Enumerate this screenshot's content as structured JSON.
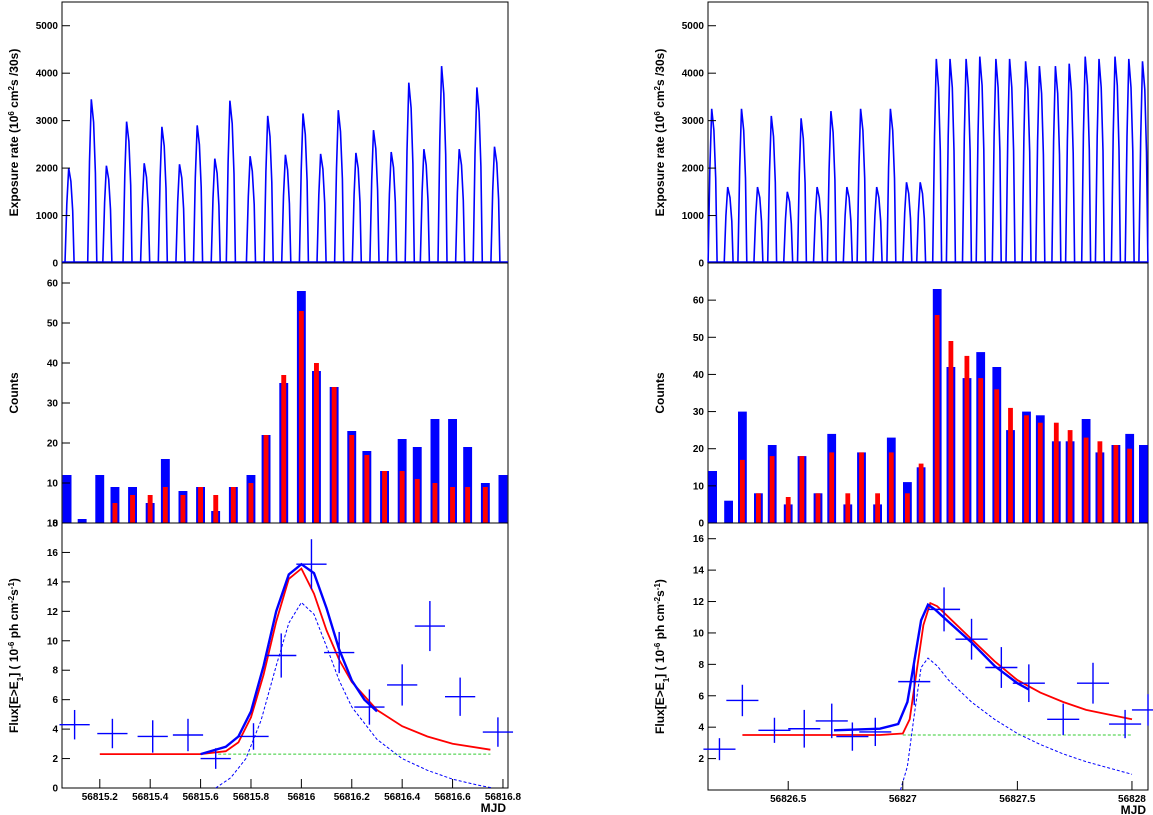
{
  "chart_data": [
    {
      "type": "line",
      "panel": "left-top",
      "ylabel_parts": [
        "Exposure rate (10",
        "6",
        " cm",
        "2",
        "s /30s)"
      ],
      "ylim": [
        0,
        5500
      ],
      "yticks": [
        0,
        1000,
        2000,
        3000,
        4000,
        5000
      ],
      "xlim": [
        56815.05,
        56816.82
      ],
      "color": "#0000ff",
      "x": [
        56815.08,
        56815.17,
        56815.23,
        56815.31,
        56815.38,
        56815.45,
        56815.52,
        56815.59,
        56815.66,
        56815.72,
        56815.8,
        56815.87,
        56815.94,
        56816.01,
        56816.08,
        56816.15,
        56816.22,
        56816.29,
        56816.36,
        56816.43,
        56816.49,
        56816.56,
        56816.63,
        56816.7,
        56816.77
      ],
      "values": [
        2000,
        3450,
        2050,
        2980,
        2100,
        2870,
        2080,
        2900,
        2200,
        3420,
        2250,
        3100,
        2280,
        3150,
        2300,
        3220,
        2320,
        2800,
        2340,
        3800,
        2400,
        4150,
        2400,
        3700,
        2450
      ]
    },
    {
      "type": "bar",
      "panel": "left-middle",
      "ylabel": "Counts",
      "ylim": [
        0,
        65
      ],
      "yticks": [
        0,
        10,
        20,
        30,
        40,
        50,
        60
      ],
      "xlim": [
        56815.05,
        56816.82
      ],
      "series": [
        {
          "color": "#0000ff",
          "x": [
            56815.07,
            56815.13,
            56815.2,
            56815.26,
            56815.33,
            56815.4,
            56815.46,
            56815.53,
            56815.6,
            56815.66,
            56815.73,
            56815.8,
            56815.86,
            56815.93,
            56816.0,
            56816.06,
            56816.13,
            56816.2,
            56816.26,
            56816.33,
            56816.4,
            56816.46,
            56816.53,
            56816.6,
            56816.66,
            56816.73,
            56816.8
          ],
          "values": [
            12,
            1,
            12,
            9,
            9,
            5,
            16,
            8,
            9,
            3,
            9,
            12,
            22,
            35,
            58,
            38,
            34,
            23,
            18,
            13,
            21,
            19,
            26,
            26,
            19,
            10,
            12
          ]
        },
        {
          "color": "#ff0000",
          "x": [
            56815.07,
            56815.13,
            56815.2,
            56815.26,
            56815.33,
            56815.4,
            56815.46,
            56815.53,
            56815.6,
            56815.66,
            56815.73,
            56815.8,
            56815.86,
            56815.93,
            56816.0,
            56816.06,
            56816.13,
            56816.2,
            56816.26,
            56816.33,
            56816.4,
            56816.46,
            56816.53,
            56816.6,
            56816.66,
            56816.73,
            56816.8
          ],
          "values": [
            0,
            0,
            0,
            5,
            7,
            7,
            9,
            7,
            9,
            7,
            9,
            10,
            22,
            37,
            53,
            40,
            34,
            22,
            17,
            13,
            13,
            11,
            10,
            9,
            9,
            9,
            0
          ]
        }
      ]
    },
    {
      "type": "scatter",
      "panel": "left-bottom",
      "ylabel_parts": [
        "Flux[E>E",
        "1",
        "] ( 10",
        "-6",
        " ph cm",
        "-2",
        "s",
        "-1",
        ")"
      ],
      "xlabel": "MJD",
      "ylim": [
        0,
        18
      ],
      "yticks": [
        0,
        2,
        4,
        6,
        8,
        10,
        12,
        14,
        16,
        18
      ],
      "xlim": [
        56815.05,
        56816.82
      ],
      "xticks": [
        56815.2,
        56815.4,
        56815.6,
        56815.8,
        56816,
        56816.2,
        56816.4,
        56816.6,
        56816.8
      ],
      "xticklabels": [
        "56815.2",
        "56815.4",
        "56815.6",
        "56815.8",
        "56816",
        "56816.2",
        "56816.4",
        "56816.6",
        "56816.8"
      ],
      "points": [
        {
          "x": 56815.1,
          "xerr": 0.06,
          "y": 4.3,
          "yerr": 1.0
        },
        {
          "x": 56815.25,
          "xerr": 0.06,
          "y": 3.7,
          "yerr": 1.0
        },
        {
          "x": 56815.41,
          "xerr": 0.06,
          "y": 3.5,
          "yerr": 1.1
        },
        {
          "x": 56815.55,
          "xerr": 0.06,
          "y": 3.6,
          "yerr": 1.1
        },
        {
          "x": 56815.66,
          "xerr": 0.06,
          "y": 2.0,
          "yerr": 0.7
        },
        {
          "x": 56815.81,
          "xerr": 0.06,
          "y": 3.5,
          "yerr": 0.9
        },
        {
          "x": 56815.92,
          "xerr": 0.06,
          "y": 9.0,
          "yerr": 1.5
        },
        {
          "x": 56816.04,
          "xerr": 0.06,
          "y": 15.2,
          "yerr": 1.7
        },
        {
          "x": 56816.15,
          "xerr": 0.06,
          "y": 9.2,
          "yerr": 1.4
        },
        {
          "x": 56816.27,
          "xerr": 0.06,
          "y": 5.5,
          "yerr": 1.2
        },
        {
          "x": 56816.4,
          "xerr": 0.06,
          "y": 7.0,
          "yerr": 1.4
        },
        {
          "x": 56816.51,
          "xerr": 0.06,
          "y": 11.0,
          "yerr": 1.7
        },
        {
          "x": 56816.63,
          "xerr": 0.06,
          "y": 6.2,
          "yerr": 1.3
        },
        {
          "x": 56816.78,
          "xerr": 0.06,
          "y": 3.8,
          "yerr": 1.0
        }
      ],
      "curves": [
        {
          "color": "#ff0000",
          "style": "solid",
          "x": [
            56815.2,
            56815.4,
            56815.6,
            56815.7,
            56815.75,
            56815.8,
            56815.85,
            56815.9,
            56815.95,
            56816.0,
            56816.05,
            56816.1,
            56816.15,
            56816.2,
            56816.3,
            56816.4,
            56816.5,
            56816.6,
            56816.75
          ],
          "values": [
            2.3,
            2.3,
            2.3,
            2.5,
            3.1,
            4.8,
            7.7,
            11.3,
            14.2,
            14.9,
            13.2,
            10.7,
            8.7,
            7.2,
            5.3,
            4.2,
            3.5,
            3.0,
            2.6
          ]
        },
        {
          "color": "#0000ff",
          "style": "solid",
          "x": [
            56815.6,
            56815.7,
            56815.75,
            56815.8,
            56815.85,
            56815.9,
            56815.95,
            56816.0,
            56816.05,
            56816.1,
            56816.15,
            56816.2,
            56816.25,
            56816.3
          ],
          "values": [
            2.3,
            2.8,
            3.5,
            5.2,
            8.3,
            12.0,
            14.5,
            15.2,
            14.6,
            12.2,
            9.4,
            7.3,
            6.0,
            5.2
          ]
        },
        {
          "color": "#0000ff",
          "style": "dashed",
          "x": [
            56815.66,
            56815.72,
            56815.78,
            56815.84,
            56815.9,
            56815.95,
            56816.0,
            56816.05,
            56816.1,
            56816.15,
            56816.2,
            56816.3,
            56816.4,
            56816.5,
            56816.6,
            56816.7,
            56816.76
          ],
          "values": [
            0,
            0.7,
            2.0,
            4.6,
            8.3,
            11.2,
            12.6,
            11.8,
            9.6,
            7.3,
            5.5,
            3.3,
            2.0,
            1.2,
            0.6,
            0.2,
            0
          ]
        },
        {
          "color": "#33cc33",
          "style": "dashed",
          "x": [
            56815.67,
            56816.75
          ],
          "values": [
            2.3,
            2.3
          ]
        }
      ]
    },
    {
      "type": "line",
      "panel": "right-top",
      "ylabel_parts": [
        "Exposure rate (10",
        "6",
        " cm",
        "2",
        "s /30s)"
      ],
      "ylim": [
        0,
        5500
      ],
      "yticks": [
        0,
        1000,
        2000,
        3000,
        4000,
        5000
      ],
      "xlim": [
        56826.15,
        56828.07
      ],
      "color": "#0000ff",
      "x": [
        56826.17,
        56826.24,
        56826.3,
        56826.37,
        56826.43,
        56826.5,
        56826.56,
        56826.63,
        56826.69,
        56826.76,
        56826.82,
        56826.89,
        56826.95,
        56827.02,
        56827.08,
        56827.15,
        56827.21,
        56827.28,
        56827.34,
        56827.41,
        56827.47,
        56827.54,
        56827.6,
        56827.67,
        56827.73,
        56827.8,
        56827.86,
        56827.93,
        56827.99,
        56828.05
      ],
      "values": [
        3250,
        1600,
        3250,
        1600,
        3100,
        1500,
        3050,
        1600,
        3200,
        1600,
        3250,
        1600,
        3250,
        1700,
        1700,
        4300,
        4300,
        4300,
        4350,
        4300,
        4300,
        4250,
        4150,
        4150,
        4200,
        4350,
        4300,
        4350,
        4300,
        4250
      ]
    },
    {
      "type": "bar",
      "panel": "right-middle",
      "ylabel": "Counts",
      "ylim": [
        0,
        70
      ],
      "yticks": [
        0,
        10,
        20,
        30,
        40,
        50,
        60
      ],
      "xlim": [
        56826.15,
        56828.07
      ],
      "series": [
        {
          "color": "#0000ff",
          "x": [
            56826.17,
            56826.24,
            56826.3,
            56826.37,
            56826.43,
            56826.5,
            56826.56,
            56826.63,
            56826.69,
            56826.76,
            56826.82,
            56826.89,
            56826.95,
            56827.02,
            56827.08,
            56827.15,
            56827.21,
            56827.28,
            56827.34,
            56827.41,
            56827.47,
            56827.54,
            56827.6,
            56827.67,
            56827.73,
            56827.8,
            56827.86,
            56827.93,
            56827.99,
            56828.05
          ],
          "values": [
            14,
            6,
            30,
            8,
            21,
            5,
            18,
            8,
            24,
            5,
            19,
            5,
            23,
            11,
            15,
            63,
            42,
            39,
            46,
            42,
            25,
            30,
            29,
            22,
            22,
            28,
            19,
            21,
            24,
            21
          ]
        },
        {
          "color": "#ff0000",
          "x": [
            56826.17,
            56826.24,
            56826.3,
            56826.37,
            56826.43,
            56826.5,
            56826.56,
            56826.63,
            56826.69,
            56826.76,
            56826.82,
            56826.89,
            56826.95,
            56827.02,
            56827.08,
            56827.15,
            56827.21,
            56827.28,
            56827.34,
            56827.41,
            56827.47,
            56827.54,
            56827.6,
            56827.67,
            56827.73,
            56827.8,
            56827.86,
            56827.93,
            56827.99,
            56828.05
          ],
          "values": [
            0,
            0,
            17,
            8,
            18,
            7,
            18,
            8,
            19,
            8,
            19,
            8,
            19,
            8,
            16,
            56,
            49,
            45,
            39,
            36,
            31,
            29,
            27,
            27,
            25,
            23,
            22,
            21,
            20,
            0
          ]
        }
      ]
    },
    {
      "type": "scatter",
      "panel": "right-bottom",
      "ylabel_parts": [
        "Flux[E>E",
        "1",
        "] ( 10",
        "-6",
        " ph cm",
        "-2",
        "s",
        "-1",
        ")"
      ],
      "xlabel": "MJD",
      "ylim": [
        0,
        17
      ],
      "yticks": [
        2,
        4,
        6,
        8,
        10,
        12,
        14,
        16
      ],
      "xlim": [
        56826.15,
        56828.07
      ],
      "xticks": [
        56826.5,
        56827,
        56827.5,
        56828
      ],
      "xticklabels": [
        "56826.5",
        "56827",
        "56827.5",
        "56828"
      ],
      "points": [
        {
          "x": 56826.2,
          "xerr": 0.07,
          "y": 2.6,
          "yerr": 0.7
        },
        {
          "x": 56826.3,
          "xerr": 0.07,
          "y": 5.7,
          "yerr": 1.0
        },
        {
          "x": 56826.44,
          "xerr": 0.07,
          "y": 3.8,
          "yerr": 0.8
        },
        {
          "x": 56826.57,
          "xerr": 0.07,
          "y": 3.9,
          "yerr": 1.2
        },
        {
          "x": 56826.69,
          "xerr": 0.07,
          "y": 4.4,
          "yerr": 1.1
        },
        {
          "x": 56826.78,
          "xerr": 0.07,
          "y": 3.4,
          "yerr": 0.9
        },
        {
          "x": 56826.88,
          "xerr": 0.07,
          "y": 3.7,
          "yerr": 0.9
        },
        {
          "x": 56827.05,
          "xerr": 0.07,
          "y": 6.9,
          "yerr": 1.5
        },
        {
          "x": 56827.18,
          "xerr": 0.07,
          "y": 11.5,
          "yerr": 1.4
        },
        {
          "x": 56827.3,
          "xerr": 0.07,
          "y": 9.6,
          "yerr": 1.3
        },
        {
          "x": 56827.43,
          "xerr": 0.07,
          "y": 7.8,
          "yerr": 1.3
        },
        {
          "x": 56827.55,
          "xerr": 0.07,
          "y": 6.8,
          "yerr": 1.2
        },
        {
          "x": 56827.7,
          "xerr": 0.07,
          "y": 4.5,
          "yerr": 1.0
        },
        {
          "x": 56827.83,
          "xerr": 0.07,
          "y": 6.8,
          "yerr": 1.3
        },
        {
          "x": 56827.97,
          "xerr": 0.07,
          "y": 4.2,
          "yerr": 0.9
        },
        {
          "x": 56828.07,
          "xerr": 0.07,
          "y": 5.1,
          "yerr": 1.0
        }
      ],
      "curves": [
        {
          "color": "#ff0000",
          "style": "solid",
          "x": [
            56826.3,
            56826.6,
            56826.9,
            56827.0,
            56827.03,
            56827.06,
            56827.09,
            56827.12,
            56827.15,
            56827.2,
            56827.3,
            56827.4,
            56827.5,
            56827.6,
            56827.7,
            56827.8,
            56827.9,
            56828.0
          ],
          "values": [
            3.5,
            3.5,
            3.5,
            3.6,
            4.5,
            7.5,
            10.5,
            11.9,
            11.7,
            11.0,
            9.6,
            8.2,
            7.0,
            6.2,
            5.6,
            5.1,
            4.8,
            4.5
          ]
        },
        {
          "color": "#0000ff",
          "style": "solid",
          "x": [
            56826.7,
            56826.9,
            56826.98,
            56827.02,
            56827.05,
            56827.08,
            56827.11,
            56827.14,
            56827.2,
            56827.3,
            56827.4,
            56827.5,
            56827.55
          ],
          "values": [
            3.8,
            3.9,
            4.2,
            5.6,
            8.2,
            10.8,
            11.8,
            11.5,
            10.7,
            9.4,
            7.9,
            6.8,
            6.4
          ]
        },
        {
          "color": "#0000ff",
          "style": "dashed",
          "x": [
            56826.99,
            56827.02,
            56827.05,
            56827.08,
            56827.11,
            56827.15,
            56827.2,
            56827.3,
            56827.4,
            56827.5,
            56827.6,
            56827.7,
            56827.8,
            56827.9,
            56828.0
          ],
          "values": [
            0,
            1.5,
            4.8,
            7.8,
            8.4,
            7.9,
            7.0,
            5.6,
            4.5,
            3.6,
            2.9,
            2.3,
            1.8,
            1.4,
            1.0
          ]
        },
        {
          "color": "#33cc33",
          "style": "dashed",
          "x": [
            56827.0,
            56828.0
          ],
          "values": [
            3.5,
            3.5
          ]
        }
      ]
    }
  ]
}
